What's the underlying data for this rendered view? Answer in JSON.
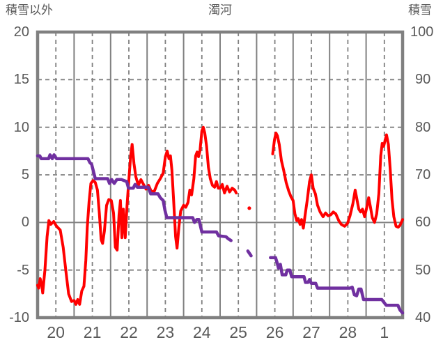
{
  "titles": {
    "left_axis": "積雪以外",
    "chart": "濁河",
    "right_axis": "積雪"
  },
  "colors": {
    "red_series": "#FF0000",
    "purple_series": "#7030A0",
    "grid": "#808080",
    "border": "#808080",
    "text": "#595959",
    "background": "#FFFFFF"
  },
  "chart_data": {
    "type": "line",
    "title": "濁河",
    "grid": "solid vertical lines at day boundaries, dashed at mid-day; dashed horizontal gridlines, solid zero line",
    "legend_position": "none",
    "left_axis": {
      "title": "積雪以外",
      "ticks": [
        "20",
        "15",
        "10",
        "5",
        "0",
        "-5",
        "-10"
      ],
      "range": [
        -10,
        20
      ]
    },
    "right_axis": {
      "title": "積雪",
      "ticks": [
        "100",
        "90",
        "80",
        "70",
        "60",
        "50",
        "40"
      ],
      "range": [
        40,
        100
      ]
    },
    "x_axis": {
      "tick_labels": [
        "20",
        "21",
        "22",
        "23",
        "24",
        "25",
        "26",
        "27",
        "28",
        "1"
      ],
      "range_days": [
        0,
        10
      ]
    },
    "series": [
      {
        "name": "積雪以外",
        "axis": "left",
        "color": "#FF0000",
        "width": 4,
        "segments": [
          [
            [
              0.0,
              -6.6
            ],
            [
              0.03,
              -6.9
            ],
            [
              0.07,
              -5.9
            ],
            [
              0.11,
              -6.5
            ],
            [
              0.14,
              -7.4
            ],
            [
              0.2,
              -5.0
            ],
            [
              0.26,
              -1.5
            ],
            [
              0.31,
              0.2
            ],
            [
              0.36,
              -0.2
            ],
            [
              0.44,
              0.1
            ],
            [
              0.52,
              -0.4
            ],
            [
              0.62,
              -0.8
            ],
            [
              0.7,
              -2.6
            ],
            [
              0.78,
              -5.3
            ],
            [
              0.85,
              -7.5
            ],
            [
              0.93,
              -8.3
            ],
            [
              1.0,
              -8.2
            ],
            [
              1.05,
              -8.6
            ],
            [
              1.1,
              -8.1
            ],
            [
              1.15,
              -8.6
            ],
            [
              1.21,
              -7.2
            ],
            [
              1.27,
              -6.7
            ],
            [
              1.32,
              -4.0
            ],
            [
              1.36,
              -0.5
            ],
            [
              1.41,
              2.2
            ],
            [
              1.46,
              4.1
            ],
            [
              1.52,
              4.4
            ],
            [
              1.58,
              4.2
            ],
            [
              1.64,
              3.4
            ],
            [
              1.69,
              1.0
            ],
            [
              1.74,
              -1.8
            ],
            [
              1.78,
              -2.2
            ],
            [
              1.83,
              -0.9
            ],
            [
              1.89,
              1.8
            ],
            [
              1.95,
              2.4
            ],
            [
              2.02,
              2.3
            ],
            [
              2.08,
              1.0
            ],
            [
              2.13,
              -2.6
            ],
            [
              2.18,
              -2.9
            ],
            [
              2.23,
              0.8
            ],
            [
              2.27,
              2.3
            ],
            [
              2.31,
              -1.6
            ],
            [
              2.35,
              1.4
            ],
            [
              2.4,
              -1.6
            ],
            [
              2.45,
              1.8
            ],
            [
              2.5,
              4.5
            ],
            [
              2.55,
              7.0
            ],
            [
              2.59,
              8.2
            ],
            [
              2.64,
              6.2
            ],
            [
              2.69,
              4.8
            ],
            [
              2.76,
              3.9
            ],
            [
              2.83,
              4.5
            ],
            [
              2.9,
              4.0
            ],
            [
              2.97,
              3.5
            ],
            [
              3.04,
              3.9
            ],
            [
              3.12,
              3.2
            ],
            [
              3.2,
              3.3
            ],
            [
              3.28,
              4.1
            ],
            [
              3.36,
              4.6
            ],
            [
              3.44,
              5.2
            ],
            [
              3.5,
              6.9
            ],
            [
              3.55,
              7.5
            ],
            [
              3.6,
              6.7
            ],
            [
              3.64,
              7.0
            ],
            [
              3.68,
              5.5
            ],
            [
              3.73,
              2.0
            ],
            [
              3.78,
              -1.5
            ],
            [
              3.82,
              -2.7
            ],
            [
              3.87,
              -0.5
            ],
            [
              3.92,
              1.2
            ],
            [
              4.0,
              1.8
            ],
            [
              4.06,
              1.6
            ],
            [
              4.12,
              2.1
            ],
            [
              4.17,
              3.4
            ],
            [
              4.22,
              2.9
            ],
            [
              4.28,
              4.6
            ],
            [
              4.33,
              7.0
            ],
            [
              4.37,
              7.4
            ],
            [
              4.41,
              6.9
            ],
            [
              4.45,
              7.6
            ],
            [
              4.5,
              9.6
            ],
            [
              4.54,
              10.0
            ],
            [
              4.58,
              9.4
            ],
            [
              4.63,
              8.0
            ],
            [
              4.68,
              5.8
            ],
            [
              4.73,
              4.6
            ],
            [
              4.79,
              3.9
            ],
            [
              4.85,
              3.7
            ],
            [
              4.9,
              4.3
            ],
            [
              4.95,
              3.6
            ],
            [
              5.0,
              3.6
            ],
            [
              5.06,
              4.0
            ],
            [
              5.12,
              3.1
            ],
            [
              5.19,
              3.8
            ],
            [
              5.26,
              3.2
            ],
            [
              5.33,
              3.6
            ],
            [
              5.4,
              3.4
            ],
            [
              5.44,
              3.1
            ]
          ],
          [
            [
              6.44,
              7.2
            ],
            [
              6.49,
              8.7
            ],
            [
              6.53,
              9.4
            ],
            [
              6.57,
              9.1
            ],
            [
              6.62,
              8.2
            ],
            [
              6.68,
              6.5
            ],
            [
              6.74,
              5.5
            ],
            [
              6.81,
              4.2
            ],
            [
              6.88,
              3.3
            ],
            [
              6.94,
              2.7
            ],
            [
              7.0,
              2.3
            ],
            [
              7.05,
              0.9
            ],
            [
              7.1,
              0.2
            ],
            [
              7.14,
              0.4
            ],
            [
              7.19,
              -0.2
            ],
            [
              7.23,
              0.3
            ],
            [
              7.28,
              -0.6
            ],
            [
              7.33,
              0.8
            ],
            [
              7.39,
              2.4
            ],
            [
              7.45,
              4.3
            ],
            [
              7.5,
              5.0
            ],
            [
              7.55,
              3.6
            ],
            [
              7.61,
              3.0
            ],
            [
              7.67,
              1.8
            ],
            [
              7.74,
              1.1
            ],
            [
              7.82,
              0.6
            ],
            [
              7.89,
              1.0
            ],
            [
              7.96,
              0.7
            ],
            [
              8.03,
              0.8
            ],
            [
              8.1,
              1.1
            ],
            [
              8.17,
              0.9
            ],
            [
              8.25,
              0.2
            ],
            [
              8.32,
              -0.2
            ],
            [
              8.41,
              -0.4
            ],
            [
              8.49,
              -0.1
            ],
            [
              8.56,
              0.7
            ],
            [
              8.64,
              2.0
            ],
            [
              8.7,
              3.4
            ],
            [
              8.75,
              2.4
            ],
            [
              8.8,
              1.4
            ],
            [
              8.85,
              1.1
            ],
            [
              8.9,
              1.4
            ],
            [
              8.96,
              0.6
            ],
            [
              9.02,
              1.6
            ],
            [
              9.07,
              2.6
            ],
            [
              9.12,
              1.6
            ],
            [
              9.17,
              0.5
            ],
            [
              9.23,
              0.0
            ],
            [
              9.29,
              0.9
            ],
            [
              9.35,
              3.0
            ],
            [
              9.4,
              7.0
            ],
            [
              9.44,
              8.3
            ],
            [
              9.48,
              8.0
            ],
            [
              9.52,
              8.6
            ],
            [
              9.56,
              9.2
            ],
            [
              9.61,
              8.2
            ],
            [
              9.66,
              5.6
            ],
            [
              9.71,
              2.4
            ],
            [
              9.76,
              0.6
            ],
            [
              9.82,
              -0.4
            ],
            [
              9.88,
              -0.5
            ],
            [
              9.93,
              -0.3
            ],
            [
              10.0,
              0.3
            ]
          ]
        ],
        "point_markers": [
          [
            5.8,
            1.5
          ]
        ]
      },
      {
        "name": "積雪",
        "axis": "right",
        "color": "#7030A0",
        "width": 4.5,
        "segments": [
          [
            [
              0.0,
              74.0
            ],
            [
              0.06,
              74.0
            ],
            [
              0.1,
              73.4
            ],
            [
              0.3,
              73.4
            ],
            [
              0.34,
              74.2
            ],
            [
              0.4,
              73.4
            ],
            [
              0.45,
              74.2
            ],
            [
              0.52,
              73.4
            ],
            [
              1.38,
              73.4
            ],
            [
              1.43,
              72.6
            ],
            [
              1.48,
              72.2
            ],
            [
              1.58,
              69.2
            ],
            [
              1.92,
              69.2
            ],
            [
              1.97,
              68.2
            ],
            [
              2.03,
              69.0
            ],
            [
              2.1,
              68.2
            ],
            [
              2.17,
              69.0
            ],
            [
              2.3,
              69.0
            ],
            [
              2.44,
              68.6
            ],
            [
              2.49,
              67.2
            ],
            [
              2.62,
              67.2
            ],
            [
              2.67,
              68.0
            ],
            [
              2.73,
              67.4
            ],
            [
              3.03,
              67.4
            ],
            [
              3.1,
              66.0
            ],
            [
              3.3,
              66.0
            ],
            [
              3.36,
              65.2
            ],
            [
              3.44,
              64.6
            ],
            [
              3.49,
              62.5
            ],
            [
              3.54,
              61.0
            ],
            [
              4.25,
              61.0
            ],
            [
              4.3,
              60.0
            ],
            [
              4.36,
              60.6
            ],
            [
              4.42,
              60.6
            ],
            [
              4.5,
              58.0
            ],
            [
              4.9,
              58.0
            ],
            [
              4.96,
              57.2
            ],
            [
              5.16,
              57.0
            ],
            [
              5.22,
              56.6
            ],
            [
              5.3,
              56.2
            ]
          ],
          [
            [
              5.76,
              54.0
            ],
            [
              5.85,
              53.0
            ]
          ],
          [
            [
              6.38,
              52.6
            ],
            [
              6.52,
              52.6
            ],
            [
              6.56,
              51.6
            ],
            [
              6.6,
              50.4
            ],
            [
              6.65,
              51.2
            ],
            [
              6.7,
              49.0
            ],
            [
              6.8,
              49.0
            ],
            [
              6.84,
              50.0
            ],
            [
              6.91,
              50.0
            ],
            [
              6.96,
              48.6
            ],
            [
              7.3,
              48.6
            ],
            [
              7.34,
              47.4
            ],
            [
              7.41,
              47.4
            ],
            [
              7.45,
              48.0
            ],
            [
              7.5,
              47.2
            ],
            [
              7.62,
              47.2
            ],
            [
              7.67,
              46.2
            ],
            [
              8.56,
              46.2
            ],
            [
              8.62,
              46.4
            ],
            [
              8.68,
              44.8
            ],
            [
              8.74,
              44.6
            ],
            [
              8.8,
              46.0
            ],
            [
              8.86,
              46.0
            ],
            [
              8.93,
              43.8
            ],
            [
              9.43,
              43.8
            ],
            [
              9.49,
              43.2
            ],
            [
              9.55,
              42.6
            ],
            [
              9.87,
              42.6
            ],
            [
              9.93,
              41.6
            ],
            [
              10.0,
              41.0
            ]
          ]
        ],
        "point_markers": []
      }
    ]
  }
}
